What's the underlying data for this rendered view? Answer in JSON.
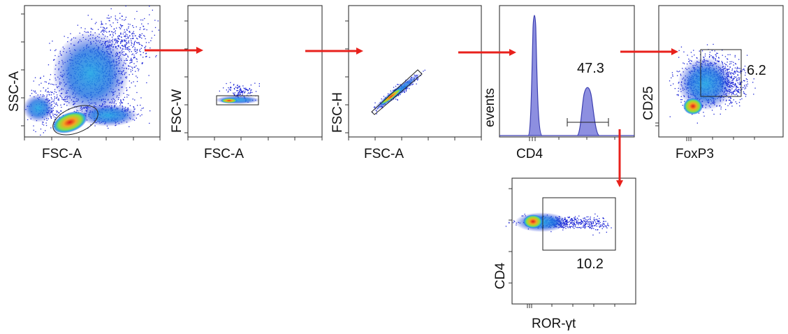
{
  "colors": {
    "arrow": "#e8211c",
    "frame": "#333333",
    "histogram_fill": "#8d8fe0",
    "histogram_line": "#3c3fb0",
    "density_low": "#1b24d6",
    "density_mid": "#2aa9e6",
    "density_high": "#f5a623",
    "density_peak": "#e01818"
  },
  "panels": [
    {
      "id": "p1",
      "type": "density-scatter",
      "x_label": "FSC-A",
      "y_label": "SSC-A",
      "gate": {
        "shape": "ellipse"
      },
      "populations": [
        "large-cloud",
        "lymphocytes",
        "small-cells",
        "debris"
      ]
    },
    {
      "id": "p2",
      "type": "density-scatter",
      "x_label": "FSC-A",
      "y_label": "FSC-W",
      "gate": {
        "shape": "rectangle"
      },
      "populations": [
        "singlets"
      ]
    },
    {
      "id": "p3",
      "type": "density-scatter",
      "x_label": "FSC-A",
      "y_label": "FSC-H",
      "gate": {
        "shape": "polygon"
      },
      "populations": [
        "diagonal-singlets"
      ]
    },
    {
      "id": "p4",
      "type": "histogram",
      "x_label": "CD4",
      "y_label": "events",
      "gate": {
        "shape": "range",
        "value": "47.3"
      },
      "populations": [
        "cd4-negative-peak",
        "cd4-positive-peak"
      ]
    },
    {
      "id": "p5",
      "type": "density-scatter",
      "x_label": "FoxP3",
      "y_label": "CD25",
      "gate": {
        "shape": "rectangle",
        "value": "6.2"
      },
      "populations": [
        "cd25-negative",
        "treg"
      ]
    },
    {
      "id": "p6",
      "type": "density-scatter",
      "x_label": "ROR-γt",
      "y_label": "CD4",
      "gate": {
        "shape": "rectangle",
        "value": "10.2"
      },
      "populations": [
        "ror-negative",
        "ror-positive"
      ]
    }
  ],
  "arrows": [
    {
      "from": "p1",
      "to": "p2",
      "direction": "right"
    },
    {
      "from": "p2",
      "to": "p3",
      "direction": "right"
    },
    {
      "from": "p3",
      "to": "p4",
      "direction": "right"
    },
    {
      "from": "p4",
      "to": "p5",
      "direction": "right"
    },
    {
      "from": "p4",
      "to": "p6",
      "direction": "down"
    }
  ]
}
